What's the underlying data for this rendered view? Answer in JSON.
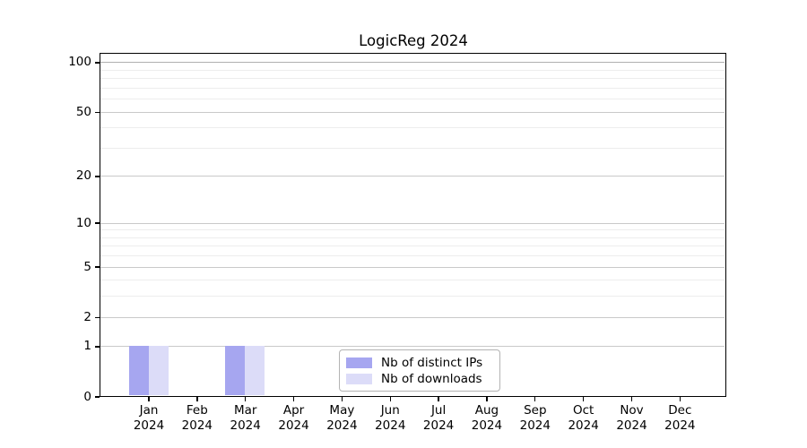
{
  "title": "LogicReg 2024",
  "chart_data": {
    "type": "bar",
    "title": "LogicReg 2024",
    "scale": "log1p",
    "months": [
      "Jan",
      "Feb",
      "Mar",
      "Apr",
      "May",
      "Jun",
      "Jul",
      "Aug",
      "Sep",
      "Oct",
      "Nov",
      "Dec"
    ],
    "year": "2024",
    "series": [
      {
        "name": "Nb of distinct IPs",
        "color": "#a6a6f0",
        "values": [
          1,
          0,
          1,
          0,
          0,
          0,
          0,
          0,
          0,
          0,
          0,
          0
        ]
      },
      {
        "name": "Nb of downloads",
        "color": "#dcdcf8",
        "values": [
          1,
          0,
          1,
          0,
          0,
          0,
          0,
          0,
          0,
          0,
          0,
          0
        ]
      }
    ],
    "y_ticks": [
      0,
      1,
      2,
      5,
      10,
      20,
      50,
      100
    ],
    "y_minor_gridlines": [
      3,
      4,
      6,
      7,
      8,
      9,
      30,
      40,
      60,
      70,
      80,
      90
    ],
    "ylim": [
      0,
      113
    ],
    "grid": true,
    "legend_position": "lower center inside plot",
    "axis_color": "#000000",
    "major_grid_color": "#c9c9c9",
    "minor_grid_color": "#ededed"
  }
}
